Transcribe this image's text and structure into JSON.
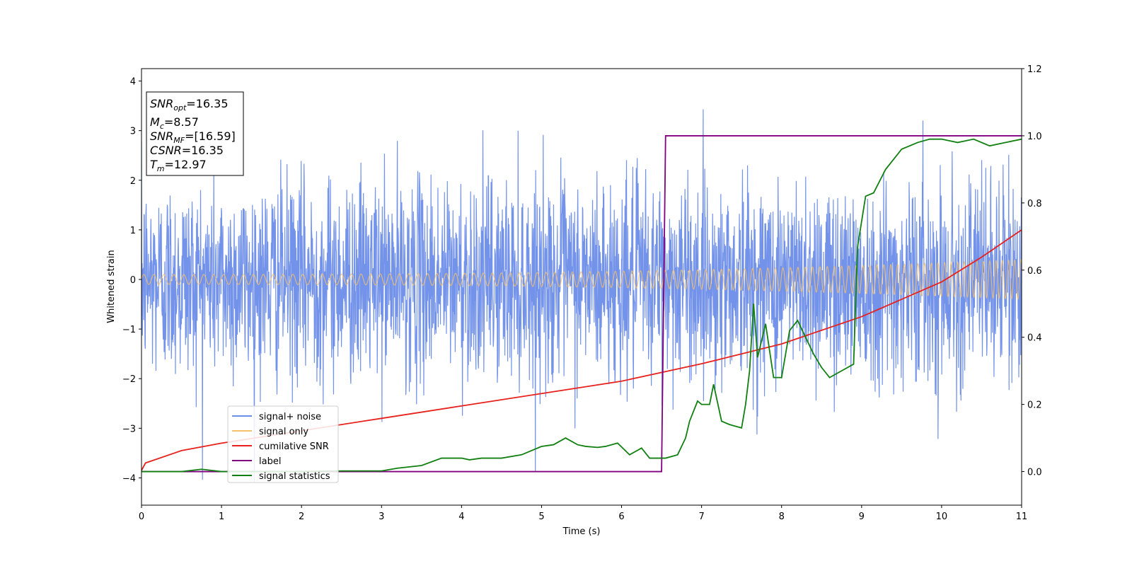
{
  "chart_data": {
    "type": "line",
    "xlabel": "Time (s)",
    "ylabel": "Whitened strain",
    "xlim": [
      0,
      11
    ],
    "ylim_left": [
      -4.55,
      4.25
    ],
    "ylim_right": [
      -0.1,
      1.2
    ],
    "x_ticks": [
      0,
      1,
      2,
      3,
      4,
      5,
      6,
      7,
      8,
      9,
      10,
      11
    ],
    "y_ticks_left": [
      -4,
      -3,
      -2,
      -1,
      0,
      1,
      2,
      3,
      4
    ],
    "y_ticks_right": [
      0.0,
      0.2,
      0.4,
      0.6,
      0.8,
      1.0,
      1.2
    ],
    "legend_placement": "lower-left",
    "series": [
      {
        "name": "signal+ noise",
        "axis": "left",
        "color": "#6b8ce8",
        "kind": "noise",
        "approx_std": 1.0,
        "peak_range": [
          -4.1,
          3.9
        ]
      },
      {
        "name": "signal only",
        "axis": "left",
        "color": "#f5c26b",
        "kind": "chirp",
        "amplitude_start": 0.1,
        "amplitude_end": 0.4
      },
      {
        "name": "cumilative SNR",
        "axis": "left",
        "color": "#e8211d",
        "x": [
          0,
          0.05,
          0.5,
          1,
          2,
          3,
          4,
          5,
          6,
          7,
          8,
          9,
          10,
          10.5,
          11
        ],
        "y": [
          -3.85,
          -3.7,
          -3.45,
          -3.3,
          -3.05,
          -2.8,
          -2.55,
          -2.3,
          -2.05,
          -1.7,
          -1.3,
          -0.75,
          -0.05,
          0.45,
          1.0
        ]
      },
      {
        "name": "label",
        "axis": "right",
        "color": "#800080",
        "x": [
          0,
          6.5,
          6.55,
          11
        ],
        "y": [
          0,
          0,
          1,
          1
        ]
      },
      {
        "name": "signal statistics",
        "axis": "right",
        "color": "#118011",
        "x": [
          0,
          0.5,
          0.75,
          1.0,
          1.5,
          2.0,
          2.5,
          3.0,
          3.2,
          3.5,
          3.75,
          3.9,
          4.0,
          4.1,
          4.25,
          4.5,
          4.75,
          5.0,
          5.15,
          5.3,
          5.45,
          5.55,
          5.7,
          5.8,
          5.95,
          6.1,
          6.25,
          6.35,
          6.45,
          6.55,
          6.7,
          6.8,
          6.85,
          6.95,
          7.0,
          7.1,
          7.15,
          7.25,
          7.35,
          7.5,
          7.55,
          7.6,
          7.65,
          7.7,
          7.8,
          7.9,
          8.0,
          8.1,
          8.2,
          8.3,
          8.4,
          8.5,
          8.6,
          8.75,
          8.9,
          8.95,
          9.05,
          9.15,
          9.3,
          9.5,
          9.7,
          9.85,
          10.0,
          10.2,
          10.4,
          10.6,
          10.8,
          11.0
        ],
        "y": [
          0.0,
          0.0,
          0.007,
          0.0,
          0.0,
          0.0,
          0.002,
          0.002,
          0.01,
          0.018,
          0.04,
          0.04,
          0.04,
          0.035,
          0.04,
          0.04,
          0.05,
          0.075,
          0.08,
          0.1,
          0.08,
          0.075,
          0.072,
          0.075,
          0.085,
          0.05,
          0.07,
          0.04,
          0.04,
          0.04,
          0.05,
          0.1,
          0.15,
          0.21,
          0.2,
          0.2,
          0.26,
          0.15,
          0.14,
          0.13,
          0.2,
          0.3,
          0.5,
          0.34,
          0.44,
          0.28,
          0.28,
          0.42,
          0.45,
          0.4,
          0.35,
          0.31,
          0.28,
          0.3,
          0.32,
          0.67,
          0.82,
          0.83,
          0.9,
          0.96,
          0.98,
          0.99,
          0.99,
          0.98,
          0.99,
          0.97,
          0.98,
          0.99
        ]
      }
    ]
  },
  "info_box": {
    "snr_opt_label": "SNR",
    "snr_opt_sub": "opt",
    "snr_opt_value": "=16.35",
    "mc_label": "M",
    "mc_sub": "c",
    "mc_value": "=8.57",
    "snr_mf_label": "SNR",
    "snr_mf_sub": "MF",
    "snr_mf_value": "=[16.59]",
    "csnr_label": "CSNR",
    "csnr_value": "=16.35",
    "tm_label": "T",
    "tm_sub": "m",
    "tm_value": "=12.97"
  }
}
